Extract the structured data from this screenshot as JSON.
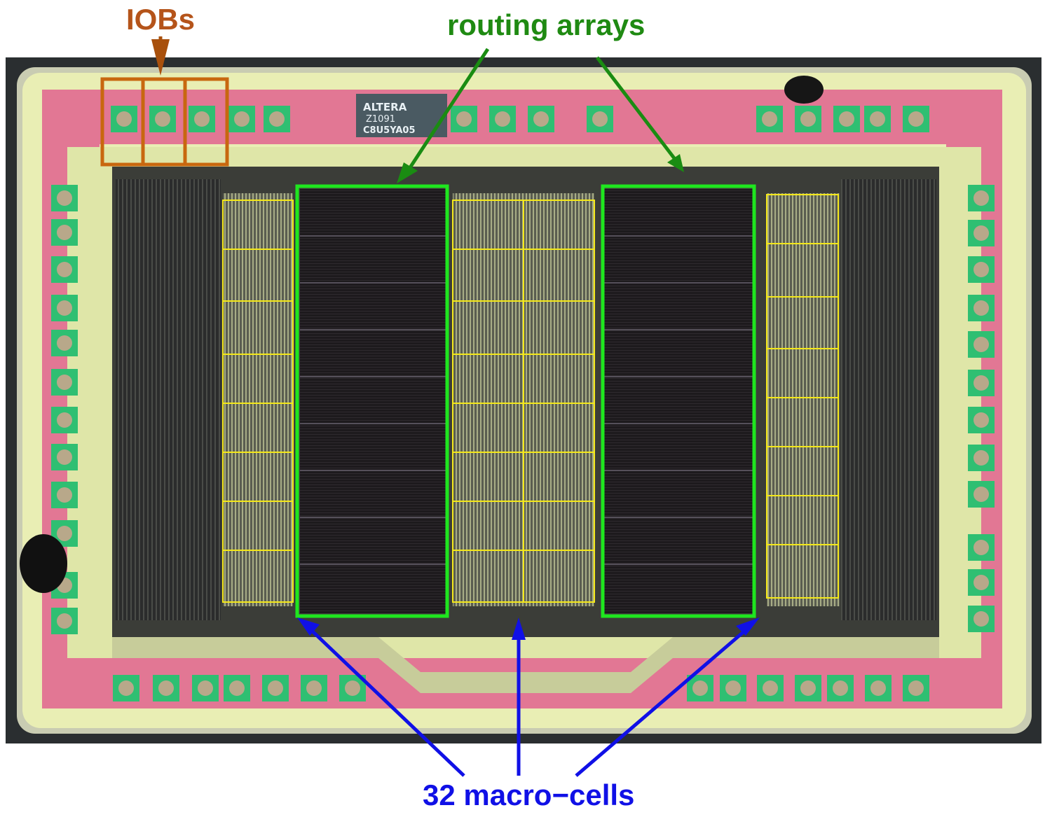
{
  "annotations": {
    "iobs": {
      "text": "IOBs",
      "color": "#b5541a"
    },
    "routing": {
      "text": "routing arrays",
      "color": "#1f8a12"
    },
    "macro": {
      "text": "32 macro−cells",
      "color": "#1010e6"
    }
  },
  "die_marking": {
    "line1": "ALTERA",
    "line2": "Z1091",
    "line3": "C8U5YA05"
  },
  "colors": {
    "die_background": "#2a2e30",
    "metal": "#e9eeb4",
    "pink": "#e0628e",
    "bond_pad_green": "#2fbf72",
    "iob_box": "#c8670f",
    "routing_box": "#1fe61f",
    "macro_grid": "#f4e81a"
  }
}
